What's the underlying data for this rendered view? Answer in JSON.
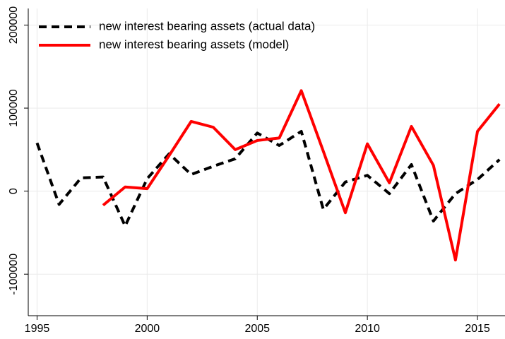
{
  "chart_data": {
    "type": "line",
    "x": [
      1995,
      1996,
      1997,
      1998,
      1999,
      2000,
      2001,
      2002,
      2003,
      2004,
      2005,
      2006,
      2007,
      2008,
      2009,
      2010,
      2011,
      2012,
      2013,
      2014,
      2015,
      2016
    ],
    "series": [
      {
        "name": "new interest bearing assets (actual data)",
        "color": "#000000",
        "dashed": true,
        "values": [
          58000,
          -16000,
          16000,
          17000,
          -42000,
          15000,
          45000,
          20000,
          30000,
          39000,
          70000,
          55000,
          72000,
          -22000,
          11000,
          19000,
          -3000,
          32000,
          -36000,
          -3000,
          14000,
          38000
        ]
      },
      {
        "name": "new interest bearing assets (model)",
        "color": "#ff0000",
        "dashed": false,
        "values": [
          null,
          null,
          null,
          -17000,
          5000,
          3000,
          43000,
          84000,
          77000,
          50000,
          61000,
          64000,
          121000,
          48000,
          -26000,
          57000,
          10000,
          78000,
          31000,
          -83000,
          72000,
          105000
        ]
      }
    ],
    "xlim": [
      1994.6,
      2016.25
    ],
    "xticks": [
      1995,
      2000,
      2005,
      2010,
      2015
    ],
    "ylim": [
      -150000,
      220000
    ],
    "yticks": [
      -100000,
      0,
      100000,
      200000
    ],
    "grid": true,
    "legend": "top-left"
  }
}
